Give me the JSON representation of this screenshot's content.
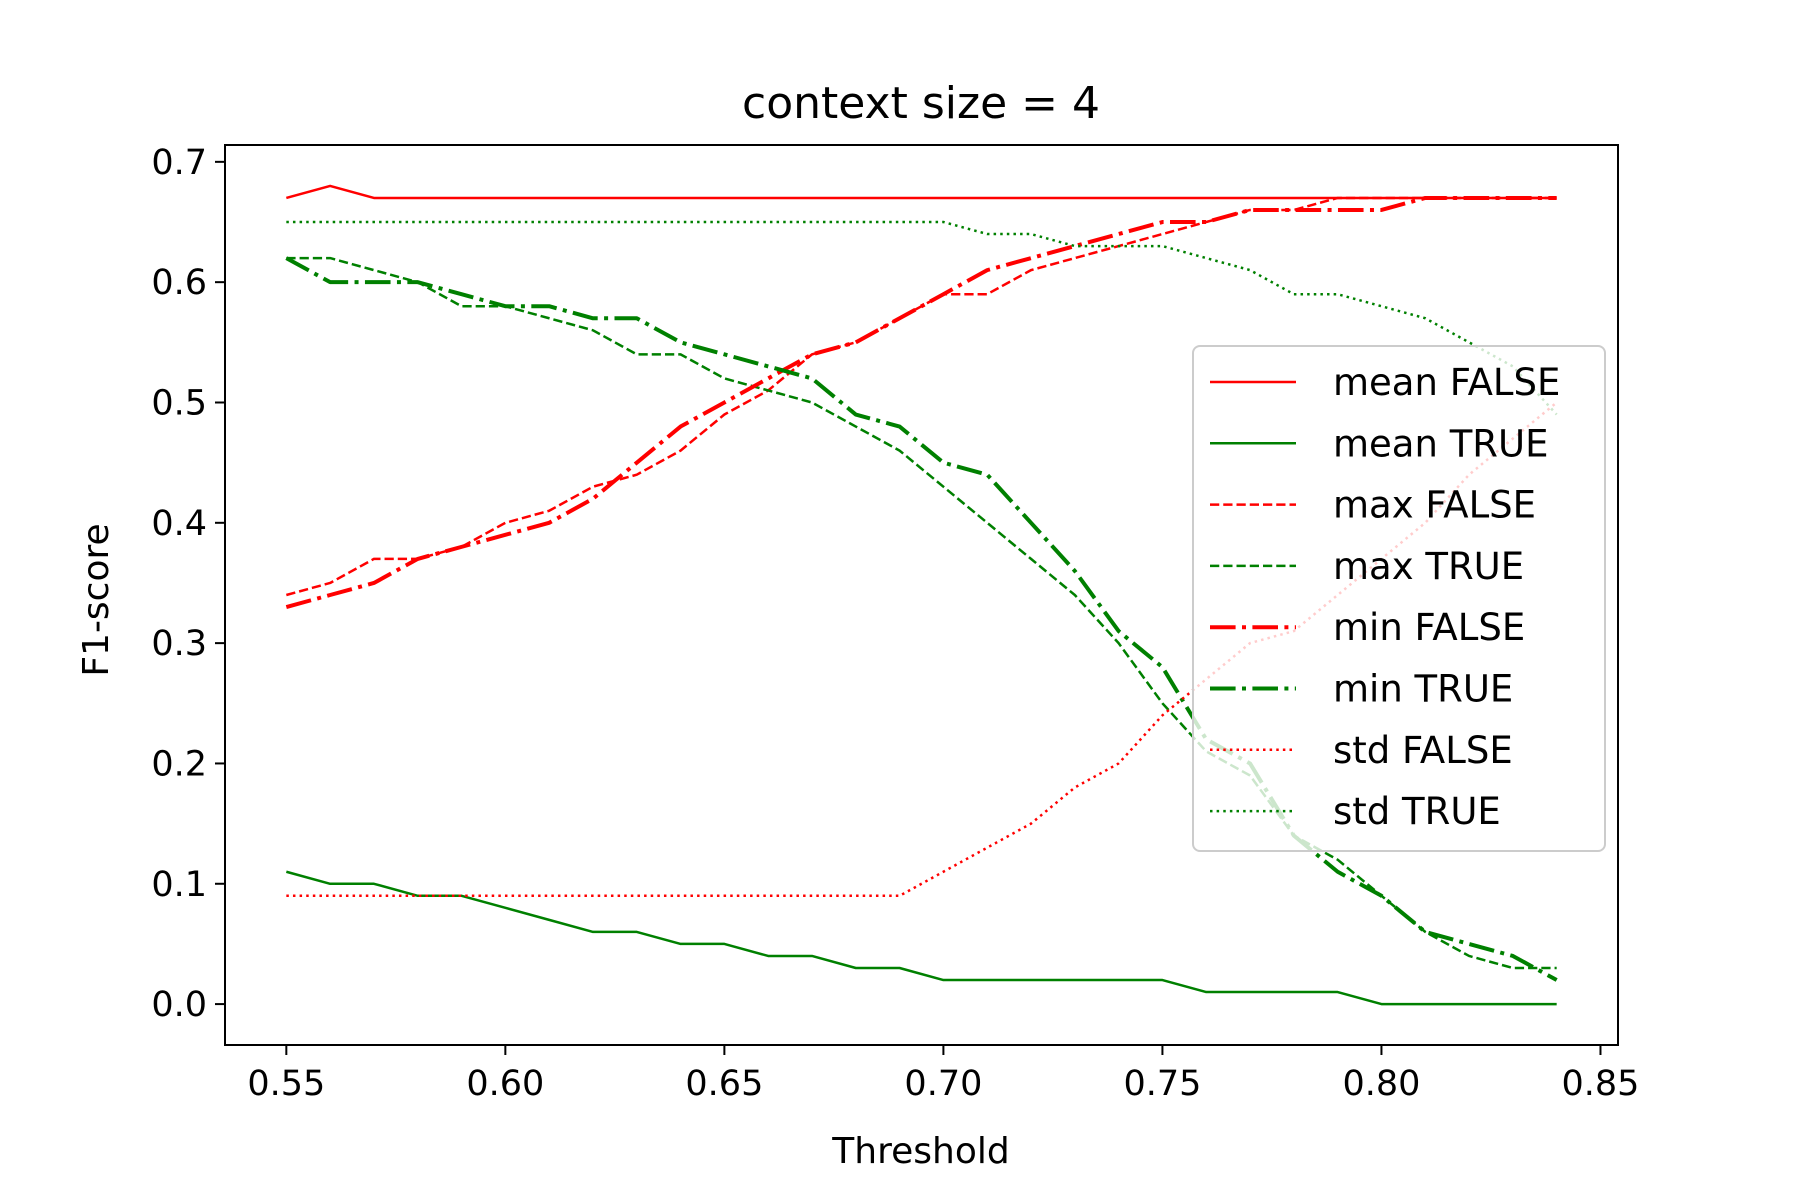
{
  "chart_data": {
    "type": "line",
    "title": "context size = 4",
    "xlabel": "Threshold",
    "ylabel": "F1-score",
    "xlim": [
      0.536,
      0.854
    ],
    "ylim": [
      -0.034,
      0.714
    ],
    "xticks": [
      "0.55",
      "0.60",
      "0.65",
      "0.70",
      "0.75",
      "0.80",
      "0.85"
    ],
    "yticks": [
      "0.0",
      "0.1",
      "0.2",
      "0.3",
      "0.4",
      "0.5",
      "0.6",
      "0.7"
    ],
    "legend_position": "center-right",
    "x": [
      0.55,
      0.56,
      0.57,
      0.58,
      0.59,
      0.6,
      0.61,
      0.62,
      0.63,
      0.64,
      0.65,
      0.66,
      0.67,
      0.68,
      0.69,
      0.7,
      0.71,
      0.72,
      0.73,
      0.74,
      0.75,
      0.76,
      0.77,
      0.78,
      0.79,
      0.8,
      0.81,
      0.82,
      0.83,
      0.84
    ],
    "series": [
      {
        "name": "mean FALSE",
        "color": "#ff0000",
        "style": "solid",
        "width": 2.5,
        "values": [
          0.67,
          0.68,
          0.67,
          0.67,
          0.67,
          0.67,
          0.67,
          0.67,
          0.67,
          0.67,
          0.67,
          0.67,
          0.67,
          0.67,
          0.67,
          0.67,
          0.67,
          0.67,
          0.67,
          0.67,
          0.67,
          0.67,
          0.67,
          0.67,
          0.67,
          0.67,
          0.67,
          0.67,
          0.67,
          0.67
        ]
      },
      {
        "name": "mean TRUE",
        "color": "#008000",
        "style": "solid",
        "width": 2.5,
        "values": [
          0.11,
          0.1,
          0.1,
          0.09,
          0.09,
          0.08,
          0.07,
          0.06,
          0.06,
          0.05,
          0.05,
          0.04,
          0.04,
          0.03,
          0.03,
          0.02,
          0.02,
          0.02,
          0.02,
          0.02,
          0.02,
          0.01,
          0.01,
          0.01,
          0.01,
          0.0,
          0.0,
          0.0,
          0.0,
          0.0
        ]
      },
      {
        "name": "max FALSE",
        "color": "#ff0000",
        "style": "dashed",
        "width": 2.5,
        "values": [
          0.34,
          0.35,
          0.37,
          0.37,
          0.38,
          0.4,
          0.41,
          0.43,
          0.44,
          0.46,
          0.49,
          0.51,
          0.54,
          0.55,
          0.57,
          0.59,
          0.59,
          0.61,
          0.62,
          0.63,
          0.64,
          0.65,
          0.66,
          0.66,
          0.67,
          0.67,
          0.67,
          0.67,
          0.67,
          0.67
        ]
      },
      {
        "name": "max TRUE",
        "color": "#008000",
        "style": "dashed",
        "width": 2.5,
        "values": [
          0.62,
          0.62,
          0.61,
          0.6,
          0.58,
          0.58,
          0.57,
          0.56,
          0.54,
          0.54,
          0.52,
          0.51,
          0.5,
          0.48,
          0.46,
          0.43,
          0.4,
          0.37,
          0.34,
          0.3,
          0.25,
          0.21,
          0.19,
          0.14,
          0.12,
          0.09,
          0.06,
          0.04,
          0.03,
          0.03
        ]
      },
      {
        "name": "min FALSE",
        "color": "#ff0000",
        "style": "dashdot",
        "width": 4,
        "values": [
          0.33,
          0.34,
          0.35,
          0.37,
          0.38,
          0.39,
          0.4,
          0.42,
          0.45,
          0.48,
          0.5,
          0.52,
          0.54,
          0.55,
          0.57,
          0.59,
          0.61,
          0.62,
          0.63,
          0.64,
          0.65,
          0.65,
          0.66,
          0.66,
          0.66,
          0.66,
          0.67,
          0.67,
          0.67,
          0.67
        ]
      },
      {
        "name": "min TRUE",
        "color": "#008000",
        "style": "dashdot",
        "width": 4,
        "values": [
          0.62,
          0.6,
          0.6,
          0.6,
          0.59,
          0.58,
          0.58,
          0.57,
          0.57,
          0.55,
          0.54,
          0.53,
          0.52,
          0.49,
          0.48,
          0.45,
          0.44,
          0.4,
          0.36,
          0.31,
          0.28,
          0.22,
          0.2,
          0.14,
          0.11,
          0.09,
          0.06,
          0.05,
          0.04,
          0.02
        ]
      },
      {
        "name": "std FALSE",
        "color": "#ff0000",
        "style": "dotted",
        "width": 2.5,
        "values": [
          0.09,
          0.09,
          0.09,
          0.09,
          0.09,
          0.09,
          0.09,
          0.09,
          0.09,
          0.09,
          0.09,
          0.09,
          0.09,
          0.09,
          0.09,
          0.11,
          0.13,
          0.15,
          0.18,
          0.2,
          0.24,
          0.27,
          0.3,
          0.31,
          0.34,
          0.37,
          0.4,
          0.44,
          0.47,
          0.5
        ]
      },
      {
        "name": "std TRUE",
        "color": "#008000",
        "style": "dotted",
        "width": 2.5,
        "values": [
          0.65,
          0.65,
          0.65,
          0.65,
          0.65,
          0.65,
          0.65,
          0.65,
          0.65,
          0.65,
          0.65,
          0.65,
          0.65,
          0.65,
          0.65,
          0.65,
          0.64,
          0.64,
          0.63,
          0.63,
          0.63,
          0.62,
          0.61,
          0.59,
          0.59,
          0.58,
          0.57,
          0.55,
          0.53,
          0.49
        ]
      }
    ]
  }
}
